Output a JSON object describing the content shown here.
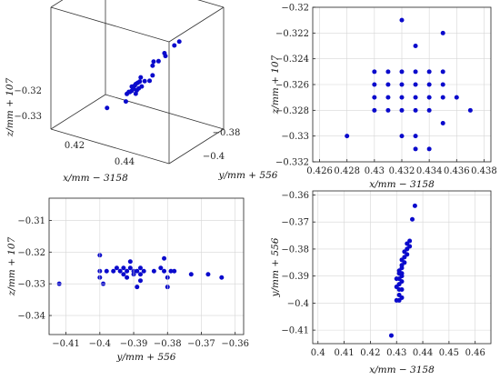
{
  "colors": {
    "marker": "#0a0acc",
    "grid": "#d6d6d6",
    "frame": "#222222"
  },
  "chart_data": [
    {
      "type": "scatter",
      "view": "3d",
      "grid": false,
      "xlabel": "x/mm − 3158",
      "ylabel": "y/mm + 556",
      "zlabel": "z/mm + 107",
      "xticks": [
        "0.42",
        "0.44"
      ],
      "yticks": [
        "−0.38",
        "−0.4"
      ],
      "zticks": [
        "−0.32",
        "−0.33"
      ],
      "points": [
        [
          0.437,
          -0.366,
          -0.317
        ],
        [
          0.436,
          -0.368,
          -0.318
        ],
        [
          0.434,
          -0.371,
          -0.321
        ],
        [
          0.434,
          -0.372,
          -0.32
        ],
        [
          0.433,
          -0.375,
          -0.322
        ],
        [
          0.432,
          -0.377,
          -0.322
        ],
        [
          0.432,
          -0.378,
          -0.323
        ],
        [
          0.433,
          -0.381,
          -0.325
        ],
        [
          0.433,
          -0.384,
          -0.326
        ],
        [
          0.432,
          -0.386,
          -0.326
        ],
        [
          0.431,
          -0.387,
          -0.325
        ],
        [
          0.431,
          -0.388,
          -0.326
        ],
        [
          0.432,
          -0.389,
          -0.327
        ],
        [
          0.431,
          -0.39,
          -0.326
        ],
        [
          0.43,
          -0.39,
          -0.327
        ],
        [
          0.431,
          -0.391,
          -0.328
        ],
        [
          0.431,
          -0.392,
          -0.326
        ],
        [
          0.432,
          -0.392,
          -0.327
        ],
        [
          0.43,
          -0.393,
          -0.328
        ],
        [
          0.431,
          -0.394,
          -0.327
        ],
        [
          0.43,
          -0.395,
          -0.328
        ],
        [
          0.432,
          -0.395,
          -0.328
        ],
        [
          0.431,
          -0.396,
          -0.326
        ],
        [
          0.43,
          -0.398,
          -0.328
        ],
        [
          0.431,
          -0.399,
          -0.327
        ],
        [
          0.43,
          -0.399,
          -0.33
        ],
        [
          0.428,
          -0.412,
          -0.33
        ]
      ]
    },
    {
      "type": "scatter",
      "grid": true,
      "xlabel": "x/mm − 3158",
      "ylabel": "z/mm + 107",
      "xlim": [
        0.4255,
        0.4385
      ],
      "ylim": [
        -0.332,
        -0.32
      ],
      "xticks": [
        0.426,
        0.428,
        0.43,
        0.432,
        0.434,
        0.436,
        0.438
      ],
      "yticks": [
        -0.332,
        -0.33,
        -0.328,
        -0.326,
        -0.324,
        -0.322,
        -0.32
      ],
      "xticklabels": [
        "0.426",
        "0.428",
        "0.43",
        "0.432",
        "0.434",
        "0.436",
        "0.438"
      ],
      "yticklabels": [
        "−0.332",
        "−0.33",
        "−0.328",
        "−0.326",
        "−0.324",
        "−0.322",
        "−0.32"
      ],
      "points": [
        [
          0.428,
          -0.33
        ],
        [
          0.432,
          -0.321
        ],
        [
          0.433,
          -0.323
        ],
        [
          0.435,
          -0.322
        ],
        [
          0.43,
          -0.325
        ],
        [
          0.431,
          -0.325
        ],
        [
          0.432,
          -0.325
        ],
        [
          0.433,
          -0.325
        ],
        [
          0.434,
          -0.325
        ],
        [
          0.435,
          -0.325
        ],
        [
          0.43,
          -0.326
        ],
        [
          0.431,
          -0.326
        ],
        [
          0.432,
          -0.326
        ],
        [
          0.433,
          -0.326
        ],
        [
          0.434,
          -0.326
        ],
        [
          0.435,
          -0.326
        ],
        [
          0.43,
          -0.327
        ],
        [
          0.431,
          -0.327
        ],
        [
          0.432,
          -0.327
        ],
        [
          0.433,
          -0.327
        ],
        [
          0.434,
          -0.327
        ],
        [
          0.435,
          -0.327
        ],
        [
          0.436,
          -0.327
        ],
        [
          0.43,
          -0.328
        ],
        [
          0.431,
          -0.328
        ],
        [
          0.432,
          -0.328
        ],
        [
          0.433,
          -0.328
        ],
        [
          0.434,
          -0.328
        ],
        [
          0.437,
          -0.328
        ],
        [
          0.435,
          -0.329
        ],
        [
          0.432,
          -0.33
        ],
        [
          0.433,
          -0.33
        ],
        [
          0.433,
          -0.331
        ],
        [
          0.434,
          -0.331
        ]
      ]
    },
    {
      "type": "scatter",
      "grid": true,
      "xlabel": "y/mm + 556",
      "ylabel": "z/mm + 107",
      "xlim": [
        -0.415,
        -0.3575
      ],
      "ylim": [
        -0.346,
        -0.303
      ],
      "xticks": [
        -0.41,
        -0.4,
        -0.39,
        -0.38,
        -0.37,
        -0.36
      ],
      "yticks": [
        -0.34,
        -0.33,
        -0.32,
        -0.31
      ],
      "xticklabels": [
        "−0.41",
        "−0.4",
        "−0.39",
        "−0.38",
        "−0.37",
        "−0.36"
      ],
      "yticklabels": [
        "−0.34",
        "−0.33",
        "−0.32",
        "−0.31"
      ],
      "points": [
        [
          -0.412,
          -0.33
        ],
        [
          -0.4,
          -0.321
        ],
        [
          -0.4,
          -0.326
        ],
        [
          -0.4,
          -0.328
        ],
        [
          -0.399,
          -0.33
        ],
        [
          -0.398,
          -0.326
        ],
        [
          -0.396,
          -0.326
        ],
        [
          -0.395,
          -0.325
        ],
        [
          -0.394,
          -0.326
        ],
        [
          -0.393,
          -0.325
        ],
        [
          -0.393,
          -0.327
        ],
        [
          -0.392,
          -0.326
        ],
        [
          -0.392,
          -0.328
        ],
        [
          -0.391,
          -0.323
        ],
        [
          -0.391,
          -0.325
        ],
        [
          -0.39,
          -0.326
        ],
        [
          -0.39,
          -0.327
        ],
        [
          -0.389,
          -0.326
        ],
        [
          -0.389,
          -0.331
        ],
        [
          -0.388,
          -0.325
        ],
        [
          -0.388,
          -0.327
        ],
        [
          -0.388,
          -0.329
        ],
        [
          -0.387,
          -0.326
        ],
        [
          -0.384,
          -0.326
        ],
        [
          -0.382,
          -0.325
        ],
        [
          -0.381,
          -0.322
        ],
        [
          -0.381,
          -0.326
        ],
        [
          -0.38,
          -0.328
        ],
        [
          -0.38,
          -0.331
        ],
        [
          -0.379,
          -0.326
        ],
        [
          -0.378,
          -0.326
        ],
        [
          -0.373,
          -0.327
        ],
        [
          -0.368,
          -0.327
        ],
        [
          -0.364,
          -0.328
        ]
      ]
    },
    {
      "type": "scatter",
      "grid": true,
      "xlabel": "x/mm − 3158",
      "ylabel": "y/mm + 556",
      "xlim": [
        0.398,
        0.466
      ],
      "ylim": [
        -0.415,
        -0.3585
      ],
      "xticks": [
        0.4,
        0.41,
        0.42,
        0.43,
        0.44,
        0.45,
        0.46
      ],
      "yticks": [
        -0.41,
        -0.4,
        -0.39,
        -0.38,
        -0.37,
        -0.36
      ],
      "xticklabels": [
        "0.4",
        "0.41",
        "0.42",
        "0.43",
        "0.44",
        "0.45",
        "0.46"
      ],
      "yticklabels": [
        "−0.41",
        "−0.4",
        "−0.39",
        "−0.38",
        "−0.37",
        "−0.36"
      ],
      "points": [
        [
          0.437,
          -0.364
        ],
        [
          0.436,
          -0.369
        ],
        [
          0.435,
          -0.377
        ],
        [
          0.435,
          -0.379
        ],
        [
          0.434,
          -0.378
        ],
        [
          0.434,
          -0.38
        ],
        [
          0.434,
          -0.382
        ],
        [
          0.433,
          -0.381
        ],
        [
          0.433,
          -0.383
        ],
        [
          0.433,
          -0.385
        ],
        [
          0.432,
          -0.384
        ],
        [
          0.432,
          -0.386
        ],
        [
          0.432,
          -0.387
        ],
        [
          0.431,
          -0.388
        ],
        [
          0.431,
          -0.389
        ],
        [
          0.432,
          -0.389
        ],
        [
          0.432,
          -0.39
        ],
        [
          0.431,
          -0.391
        ],
        [
          0.432,
          -0.392
        ],
        [
          0.431,
          -0.393
        ],
        [
          0.43,
          -0.391
        ],
        [
          0.43,
          -0.394
        ],
        [
          0.431,
          -0.395
        ],
        [
          0.432,
          -0.395
        ],
        [
          0.431,
          -0.397
        ],
        [
          0.43,
          -0.399
        ],
        [
          0.431,
          -0.399
        ],
        [
          0.432,
          -0.398
        ],
        [
          0.428,
          -0.412
        ]
      ]
    }
  ]
}
